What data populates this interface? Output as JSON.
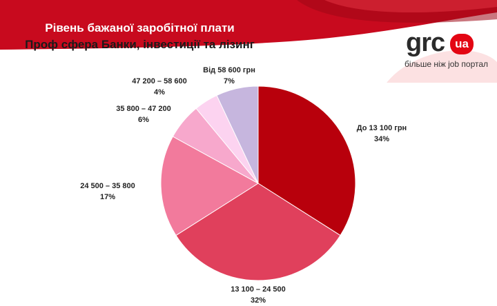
{
  "header": {
    "title_line1": "Рівень бажаної заробітної плати",
    "title_line2": "Проф сфера Банки, інвестиції та лізинг"
  },
  "logo": {
    "word": "grc",
    "badge": "ua",
    "tagline": "більше ніж job портал"
  },
  "colors": {
    "banner": "#c80a1e",
    "banner_dark": "#9e0716"
  },
  "chart_data": {
    "type": "pie",
    "title": "",
    "slices": [
      {
        "label": "До 13 100 грн",
        "percent_label": "34%",
        "value": 34,
        "color": "#b8000c"
      },
      {
        "label": "13 100 – 24 500",
        "percent_label": "32%",
        "value": 32,
        "color": "#e0405c"
      },
      {
        "label": "24 500 – 35 800",
        "percent_label": "17%",
        "value": 17,
        "color": "#f27a9c"
      },
      {
        "label": "35 800 – 47 200",
        "percent_label": "6%",
        "value": 6,
        "color": "#f7a8cc"
      },
      {
        "label": "47 200 – 58 600",
        "percent_label": "4%",
        "value": 4,
        "color": "#fcd3f0"
      },
      {
        "label": "Від 58 600 грн",
        "percent_label": "7%",
        "value": 7,
        "color": "#c6b6de"
      }
    ]
  }
}
